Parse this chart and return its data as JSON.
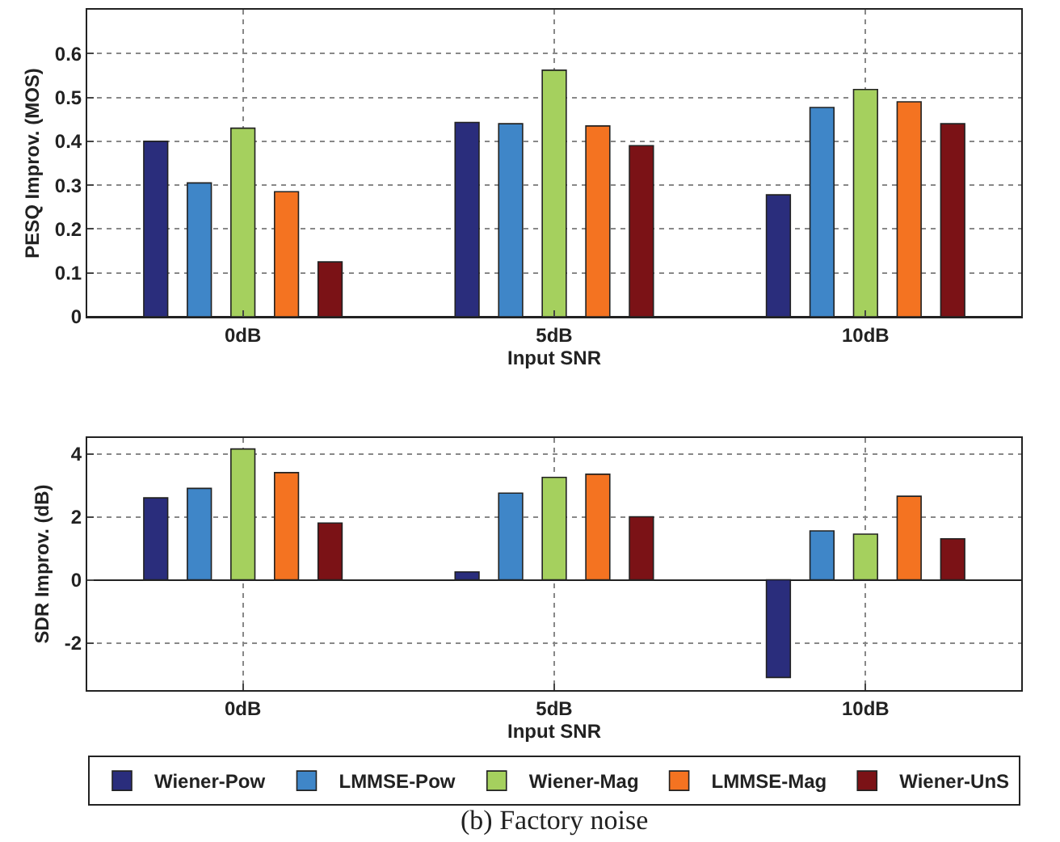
{
  "chart_data": [
    {
      "type": "bar",
      "xlabel": "Input SNR",
      "ylabel": "PESQ Improv. (MOS)",
      "categories": [
        "0dB",
        "5dB",
        "10dB"
      ],
      "ylim": [
        0,
        0.7
      ],
      "yticks": [
        0,
        0.1,
        0.2,
        0.3,
        0.4,
        0.5,
        0.6
      ],
      "grid": true,
      "series": [
        {
          "color": "#2a2d7c",
          "values": [
            0.4,
            0.443,
            0.278
          ]
        },
        {
          "color": "#3f86c8",
          "values": [
            0.305,
            0.44,
            0.477
          ]
        },
        {
          "color": "#a5d05e",
          "values": [
            0.43,
            0.562,
            0.518
          ]
        },
        {
          "color": "#f47321",
          "values": [
            0.285,
            0.435,
            0.49
          ]
        },
        {
          "color": "#7b1216",
          "values": [
            0.125,
            0.39,
            0.44
          ]
        }
      ]
    },
    {
      "type": "bar",
      "xlabel": "Input SNR",
      "ylabel": "SDR Improv. (dB)",
      "categories": [
        "0dB",
        "5dB",
        "10dB"
      ],
      "ylim": [
        -3.5,
        4.5
      ],
      "yticks": [
        -2,
        0,
        2,
        4
      ],
      "grid": true,
      "legend": "bottom",
      "annotations": [
        "(b) Factory noise"
      ],
      "series": [
        {
          "name": "Wiener-Pow",
          "color": "#2a2d7c",
          "values": [
            2.6,
            0.25,
            -3.1
          ]
        },
        {
          "name": "LMMSE-Pow",
          "color": "#3f86c8",
          "values": [
            2.9,
            2.75,
            1.55
          ]
        },
        {
          "name": "Wiener-Mag",
          "color": "#a5d05e",
          "values": [
            4.15,
            3.25,
            1.45
          ]
        },
        {
          "name": "LMMSE-Mag",
          "color": "#f47321",
          "values": [
            3.4,
            3.35,
            2.65
          ]
        },
        {
          "name": "Wiener-UnS",
          "color": "#7b1216",
          "values": [
            1.8,
            2.0,
            1.3
          ]
        }
      ]
    }
  ]
}
